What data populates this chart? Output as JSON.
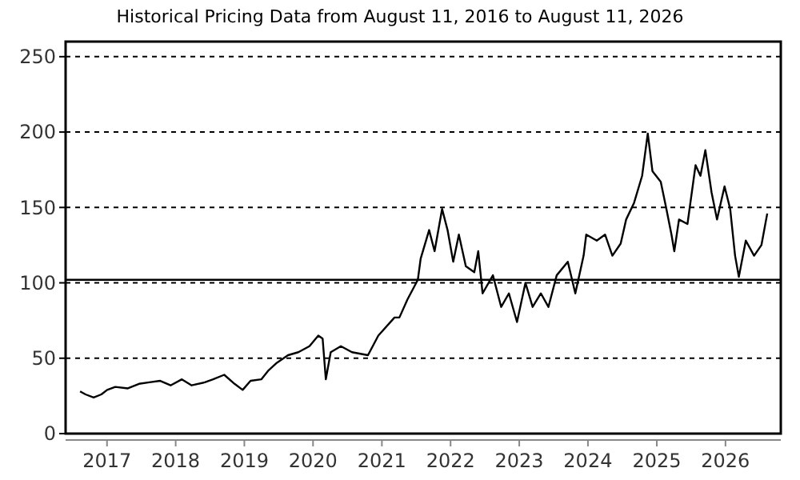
{
  "chart_data": {
    "type": "line",
    "title": "Historical Pricing Data from August 11, 2016 to August 11, 2026",
    "x": [
      "2016-08-11",
      "2016-09-09",
      "2016-10-22",
      "2016-12-02",
      "2017-01-02",
      "2017-02-14",
      "2017-04-22",
      "2017-06-20",
      "2017-08-14",
      "2017-10-11",
      "2017-12-05",
      "2018-02-03",
      "2018-03-27",
      "2018-06-05",
      "2018-07-19",
      "2018-09-16",
      "2018-11-10",
      "2018-12-23",
      "2019-02-03",
      "2019-04-01",
      "2019-05-10",
      "2019-06-23",
      "2019-08-21",
      "2019-10-15",
      "2019-12-13",
      "2020-01-29",
      "2020-02-21",
      "2020-03-09",
      "2020-04-04",
      "2020-05-28",
      "2020-07-26",
      "2020-10-19",
      "2020-12-13",
      "2021-03-09",
      "2021-04-04",
      "2021-05-17",
      "2021-07-11",
      "2021-07-26",
      "2021-09-09",
      "2021-10-08",
      "2021-11-17",
      "2021-12-16",
      "2022-01-15",
      "2022-02-14",
      "2022-03-23",
      "2022-05-07",
      "2022-05-28",
      "2022-06-20",
      "2022-08-14",
      "2022-09-27",
      "2022-11-07",
      "2022-12-20",
      "2023-02-03",
      "2023-03-13",
      "2023-04-26",
      "2023-06-05",
      "2023-07-19",
      "2023-09-16",
      "2023-10-26",
      "2023-12-09",
      "2023-12-23",
      "2024-02-17",
      "2024-04-01",
      "2024-05-10",
      "2024-06-23",
      "2024-07-22",
      "2024-09-02",
      "2024-10-15",
      "2024-11-14",
      "2024-12-09",
      "2025-01-22",
      "2025-02-21",
      "2025-03-20",
      "2025-04-04",
      "2025-04-29",
      "2025-06-13",
      "2025-07-26",
      "2025-08-21",
      "2025-09-16",
      "2025-10-19",
      "2025-11-17",
      "2025-12-27",
      "2026-01-26",
      "2026-02-21",
      "2026-03-13",
      "2026-04-19",
      "2026-06-02",
      "2026-07-11",
      "2026-08-11"
    ],
    "series": [
      {
        "color": "#000000",
        "values": [
          28,
          26,
          24,
          26,
          29,
          31,
          30,
          33,
          34,
          35,
          32,
          36,
          32,
          34,
          36,
          39,
          33,
          29,
          35,
          36,
          42,
          47,
          52,
          54,
          58,
          65,
          63,
          36,
          54,
          58,
          54,
          52,
          65,
          77,
          77,
          89,
          102,
          116,
          135,
          121,
          149,
          135,
          114,
          132,
          111,
          107,
          121,
          93,
          105,
          84,
          93,
          74,
          100,
          84,
          93,
          84,
          105,
          114,
          93,
          118,
          132,
          128,
          132,
          118,
          126,
          142,
          153,
          171,
          199,
          174,
          167,
          149,
          132,
          121,
          142,
          139,
          178,
          171,
          188,
          160,
          142,
          164,
          149,
          118,
          104,
          128,
          118,
          125,
          146
        ]
      }
    ],
    "xlim": [
      "2016-05-26",
      "2026-10-22"
    ],
    "xticks": [
      {
        "value": "2017-01-01",
        "label": "2017"
      },
      {
        "value": "2018-01-01",
        "label": "2018"
      },
      {
        "value": "2019-01-01",
        "label": "2019"
      },
      {
        "value": "2020-01-01",
        "label": "2020"
      },
      {
        "value": "2021-01-01",
        "label": "2021"
      },
      {
        "value": "2022-01-01",
        "label": "2022"
      },
      {
        "value": "2023-01-01",
        "label": "2023"
      },
      {
        "value": "2024-01-01",
        "label": "2024"
      },
      {
        "value": "2025-01-01",
        "label": "2025"
      },
      {
        "value": "2026-01-01",
        "label": "2026"
      }
    ],
    "ylim": [
      0,
      260
    ],
    "yticks": [
      0,
      50,
      100,
      150,
      200,
      250
    ],
    "grid": "y",
    "marker": "none",
    "line_style": "solid",
    "ref_lines": [
      {
        "axis": "y",
        "value": 102,
        "color": "#000000",
        "line_style": "solid"
      }
    ]
  }
}
